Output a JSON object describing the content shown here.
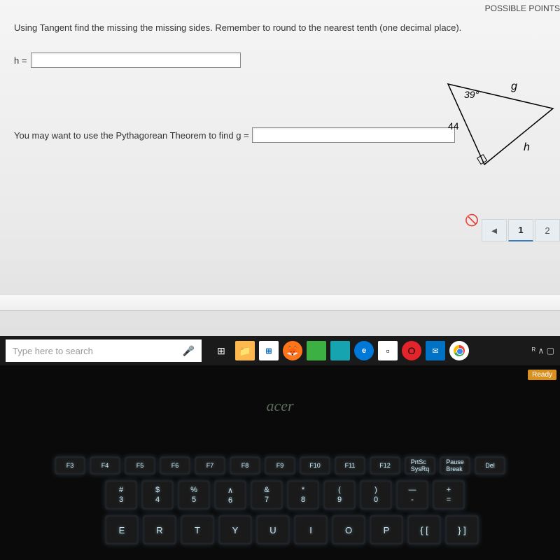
{
  "header": {
    "points_label": "POSSIBLE POINTS"
  },
  "question": {
    "instruction": "Using Tangent find the missing the missing sides.    Remember to round to the nearest tenth (one decimal place).",
    "h_label": "h =",
    "g_label": "You may want to use the Pythagorean Theorem to find g ="
  },
  "triangle": {
    "angle": "39°",
    "side_left": "44",
    "side_top": "g",
    "side_bottom": "h"
  },
  "pager": {
    "prev": "◄",
    "page1": "1",
    "page2": "2"
  },
  "taskbar": {
    "search_placeholder": "Type here to search",
    "tray_text": "ᴿ    ∧  ▢"
  },
  "laptop": {
    "logo": "acer",
    "ready": "Ready"
  },
  "keys": {
    "frow": [
      "F3",
      "F4",
      "F5",
      "F6",
      "F7",
      "F8",
      "F9",
      "F10",
      "F11",
      "F12",
      "PrtSc\nSysRq",
      "Pause\nBreak",
      "Del"
    ],
    "numrow": [
      {
        "top": "#",
        "bot": "3"
      },
      {
        "top": "$",
        "bot": "4"
      },
      {
        "top": "%",
        "bot": "5"
      },
      {
        "top": "∧",
        "bot": "6"
      },
      {
        "top": "&",
        "bot": "7"
      },
      {
        "top": "*",
        "bot": "8"
      },
      {
        "top": "(",
        "bot": "9"
      },
      {
        "top": ")",
        "bot": "0"
      },
      {
        "top": "—",
        "bot": "-"
      },
      {
        "top": "+",
        "bot": "="
      }
    ],
    "letrow": [
      "E",
      "R",
      "T",
      "Y",
      "U",
      "I",
      "O",
      "P",
      "{  [",
      "}  ]"
    ]
  }
}
